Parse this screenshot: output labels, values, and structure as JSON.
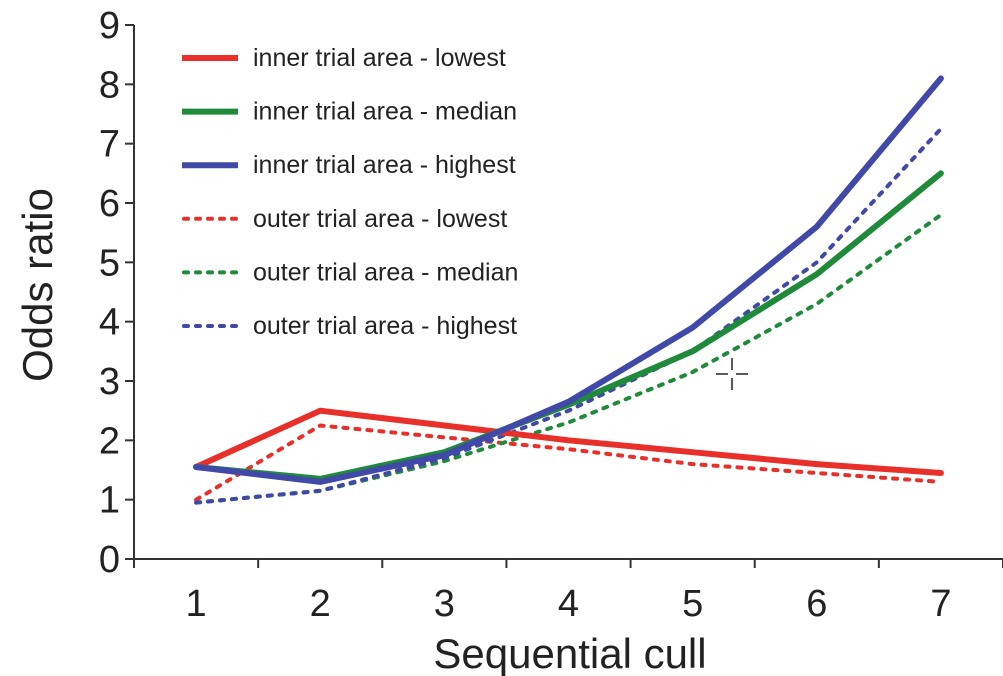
{
  "chart_data": {
    "type": "line",
    "xlabel": "Sequential cull",
    "ylabel": "Odds ratio",
    "x": [
      1,
      2,
      3,
      4,
      5,
      6,
      7
    ],
    "xlim": [
      0.5,
      7.5
    ],
    "ylim": [
      0,
      9
    ],
    "yticks": [
      0,
      1,
      2,
      3,
      4,
      5,
      6,
      7,
      8,
      9
    ],
    "xticks": [
      1,
      2,
      3,
      4,
      5,
      6,
      7
    ],
    "grid": false,
    "legend_position": "top-left",
    "series": [
      {
        "name": "inner trial area - lowest",
        "color": "#e8302a",
        "style": "solid",
        "values": [
          1.55,
          2.5,
          2.25,
          2.0,
          1.8,
          1.6,
          1.45
        ]
      },
      {
        "name": "inner trial area - median",
        "color": "#1f8a3a",
        "style": "solid",
        "values": [
          1.55,
          1.35,
          1.8,
          2.6,
          3.5,
          4.8,
          6.5
        ]
      },
      {
        "name": "inner trial area - highest",
        "color": "#4048a8",
        "style": "solid",
        "values": [
          1.55,
          1.3,
          1.75,
          2.65,
          3.9,
          5.6,
          8.1
        ]
      },
      {
        "name": "outer trial area - lowest",
        "color": "#e8302a",
        "style": "dotted",
        "values": [
          1.0,
          2.25,
          2.05,
          1.85,
          1.6,
          1.45,
          1.3
        ]
      },
      {
        "name": "outer trial area - median",
        "color": "#1f8a3a",
        "style": "dotted",
        "values": [
          0.95,
          1.15,
          1.65,
          2.3,
          3.15,
          4.3,
          5.8
        ]
      },
      {
        "name": "outer trial area - highest",
        "color": "#4048a8",
        "style": "dotted",
        "values": [
          0.95,
          1.15,
          1.7,
          2.5,
          3.5,
          5.0,
          7.25
        ]
      }
    ]
  }
}
